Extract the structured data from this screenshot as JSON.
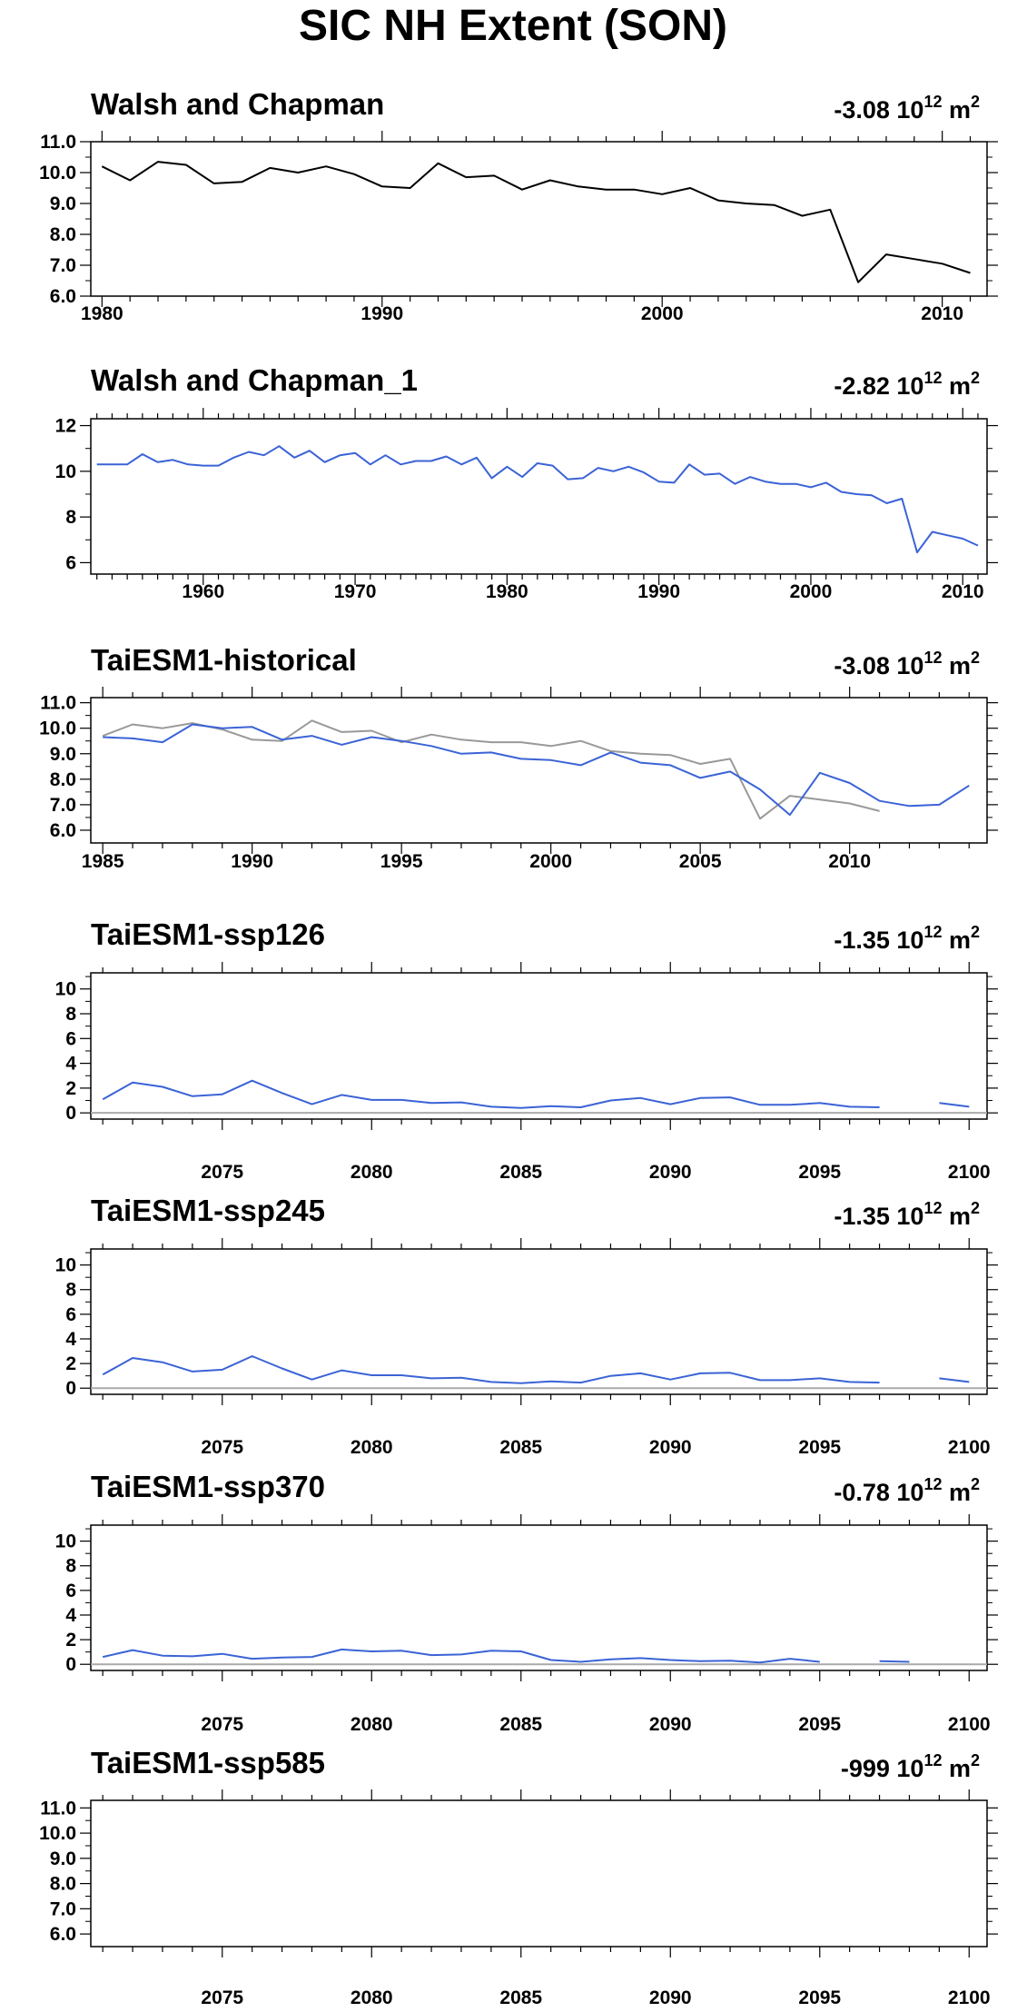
{
  "figure": {
    "title": "SIC NH Extent (SON)"
  },
  "colors": {
    "axis": "#000000",
    "obs_line": "#000000",
    "model_line": "#3b63d6",
    "obs_overlay": "#999999",
    "zero_line": "#aaaaaa"
  },
  "chart_data": [
    {
      "type": "line",
      "title": "Walsh and Chapman",
      "trend_value": "-3.08",
      "trend_unit": "10",
      "trend_exp": "12",
      "trend_suffix": "m",
      "trend_suffix_exp": "2",
      "xlim": [
        1979.6,
        2011.6
      ],
      "ylim": [
        6.0,
        11.0
      ],
      "xticks": [
        1980,
        1990,
        2000,
        2010
      ],
      "yticks": [
        6.0,
        7.0,
        8.0,
        9.0,
        10.0,
        11.0
      ],
      "ytick_labels": [
        "6.0",
        "7.0",
        "8.0",
        "9.0",
        "10.0",
        "11.0"
      ],
      "series": [
        {
          "color": "#000000",
          "x": [
            1980,
            1981,
            1982,
            1983,
            1984,
            1985,
            1986,
            1987,
            1988,
            1989,
            1990,
            1991,
            1992,
            1993,
            1994,
            1995,
            1996,
            1997,
            1998,
            1999,
            2000,
            2001,
            2002,
            2003,
            2004,
            2005,
            2006,
            2007,
            2008,
            2009,
            2010,
            2011
          ],
          "y": [
            10.2,
            9.75,
            10.35,
            10.25,
            9.65,
            9.7,
            10.15,
            10.0,
            10.2,
            9.95,
            9.55,
            9.5,
            10.3,
            9.85,
            9.9,
            9.45,
            9.75,
            9.55,
            9.45,
            9.45,
            9.3,
            9.5,
            9.1,
            9.0,
            8.95,
            8.6,
            8.8,
            6.45,
            7.35,
            7.2,
            7.05,
            6.75
          ]
        }
      ]
    },
    {
      "type": "line",
      "title": "Walsh and Chapman_1",
      "trend_value": "-2.82",
      "trend_unit": "10",
      "trend_exp": "12",
      "trend_suffix": "m",
      "trend_suffix_exp": "2",
      "xlim": [
        1952.6,
        2011.6
      ],
      "ylim": [
        5.5,
        12.3
      ],
      "xticks": [
        1960,
        1970,
        1980,
        1990,
        2000,
        2010
      ],
      "yticks": [
        6,
        8,
        10,
        12
      ],
      "ytick_labels": [
        "6",
        "8",
        "10",
        "12"
      ],
      "series": [
        {
          "color": "#3b63d6",
          "x": [
            1953,
            1954,
            1955,
            1956,
            1957,
            1958,
            1959,
            1960,
            1961,
            1962,
            1963,
            1964,
            1965,
            1966,
            1967,
            1968,
            1969,
            1970,
            1971,
            1972,
            1973,
            1974,
            1975,
            1976,
            1977,
            1978,
            1979,
            1980,
            1981,
            1982,
            1983,
            1984,
            1985,
            1986,
            1987,
            1988,
            1989,
            1990,
            1991,
            1992,
            1993,
            1994,
            1995,
            1996,
            1997,
            1998,
            1999,
            2000,
            2001,
            2002,
            2003,
            2004,
            2005,
            2006,
            2007,
            2008,
            2009,
            2010,
            2011
          ],
          "y": [
            10.3,
            10.3,
            10.3,
            10.75,
            10.4,
            10.5,
            10.3,
            10.25,
            10.25,
            10.6,
            10.85,
            10.7,
            11.1,
            10.6,
            10.9,
            10.4,
            10.7,
            10.8,
            10.3,
            10.7,
            10.3,
            10.45,
            10.45,
            10.65,
            10.3,
            10.6,
            9.7,
            10.2,
            9.75,
            10.35,
            10.25,
            9.65,
            9.7,
            10.15,
            10.0,
            10.2,
            9.95,
            9.55,
            9.5,
            10.3,
            9.85,
            9.9,
            9.45,
            9.75,
            9.55,
            9.45,
            9.45,
            9.3,
            9.5,
            9.1,
            9.0,
            8.95,
            8.6,
            8.8,
            6.45,
            7.35,
            7.2,
            7.05,
            6.75
          ]
        }
      ]
    },
    {
      "type": "line",
      "title": "TaiESM1-historical",
      "trend_value": "-3.08",
      "trend_unit": "10",
      "trend_exp": "12",
      "trend_suffix": "m",
      "trend_suffix_exp": "2",
      "xlim": [
        1984.6,
        2014.6
      ],
      "ylim": [
        5.5,
        11.2
      ],
      "xticks": [
        1985,
        1990,
        1995,
        2000,
        2005,
        2010
      ],
      "yticks": [
        6.0,
        7.0,
        8.0,
        9.0,
        10.0,
        11.0
      ],
      "ytick_labels": [
        "6.0",
        "7.0",
        "8.0",
        "9.0",
        "10.0",
        "11.0"
      ],
      "series": [
        {
          "color": "#999999",
          "x": [
            1985,
            1986,
            1987,
            1988,
            1989,
            1990,
            1991,
            1992,
            1993,
            1994,
            1995,
            1996,
            1997,
            1998,
            1999,
            2000,
            2001,
            2002,
            2003,
            2004,
            2005,
            2006,
            2007,
            2008,
            2009,
            2010,
            2011
          ],
          "y": [
            9.7,
            10.15,
            10.0,
            10.2,
            9.95,
            9.55,
            9.5,
            10.3,
            9.85,
            9.9,
            9.45,
            9.75,
            9.55,
            9.45,
            9.45,
            9.3,
            9.5,
            9.1,
            9.0,
            8.95,
            8.6,
            8.8,
            6.45,
            7.35,
            7.2,
            7.05,
            6.75
          ]
        },
        {
          "color": "#3b63d6",
          "x": [
            1985,
            1986,
            1987,
            1988,
            1989,
            1990,
            1991,
            1992,
            1993,
            1994,
            1995,
            1996,
            1997,
            1998,
            1999,
            2000,
            2001,
            2002,
            2003,
            2004,
            2005,
            2006,
            2007,
            2008,
            2009,
            2010,
            2011,
            2012,
            2013,
            2014
          ],
          "y": [
            9.65,
            9.6,
            9.45,
            10.15,
            10.0,
            10.05,
            9.55,
            9.7,
            9.35,
            9.65,
            9.5,
            9.3,
            9.0,
            9.05,
            8.8,
            8.75,
            8.55,
            9.05,
            8.65,
            8.55,
            8.05,
            8.3,
            7.6,
            6.6,
            8.25,
            7.85,
            7.15,
            6.95,
            7.0,
            7.75
          ]
        }
      ]
    },
    {
      "type": "line",
      "title": "TaiESM1-ssp126",
      "trend_value": "-1.35",
      "trend_unit": "10",
      "trend_exp": "12",
      "trend_suffix": "m",
      "trend_suffix_exp": "2",
      "xlim": [
        2070.6,
        2100.6
      ],
      "ylim": [
        -0.5,
        11.3
      ],
      "xticks": [
        2075,
        2080,
        2085,
        2090,
        2095,
        2100
      ],
      "yticks": [
        0,
        2,
        4,
        6,
        8,
        10
      ],
      "ytick_labels": [
        "0",
        "2",
        "4",
        "6",
        "8",
        "10"
      ],
      "zero_line": true,
      "series": [
        {
          "color": "#3b63d6",
          "x": [
            2071,
            2072,
            2073,
            2074,
            2075,
            2076,
            2077,
            2078,
            2079,
            2080,
            2081,
            2082,
            2083,
            2084,
            2085,
            2086,
            2087,
            2088,
            2089,
            2090,
            2091,
            2092,
            2093,
            2094,
            2095,
            2096,
            2097,
            2098,
            2099,
            2100
          ],
          "y": [
            1.1,
            2.45,
            2.1,
            1.35,
            1.5,
            2.6,
            1.6,
            0.7,
            1.45,
            1.05,
            1.05,
            0.8,
            0.85,
            0.5,
            0.4,
            0.55,
            0.45,
            1.0,
            1.2,
            0.7,
            1.2,
            1.25,
            0.65,
            0.65,
            0.8,
            0.5,
            0.45,
            null,
            0.8,
            0.5
          ]
        }
      ]
    },
    {
      "type": "line",
      "title": "TaiESM1-ssp245",
      "trend_value": "-1.35",
      "trend_unit": "10",
      "trend_exp": "12",
      "trend_suffix": "m",
      "trend_suffix_exp": "2",
      "xlim": [
        2070.6,
        2100.6
      ],
      "ylim": [
        -0.5,
        11.3
      ],
      "xticks": [
        2075,
        2080,
        2085,
        2090,
        2095,
        2100
      ],
      "yticks": [
        0,
        2,
        4,
        6,
        8,
        10
      ],
      "ytick_labels": [
        "0",
        "2",
        "4",
        "6",
        "8",
        "10"
      ],
      "zero_line": true,
      "series": [
        {
          "color": "#3b63d6",
          "x": [
            2071,
            2072,
            2073,
            2074,
            2075,
            2076,
            2077,
            2078,
            2079,
            2080,
            2081,
            2082,
            2083,
            2084,
            2085,
            2086,
            2087,
            2088,
            2089,
            2090,
            2091,
            2092,
            2093,
            2094,
            2095,
            2096,
            2097,
            2098,
            2099,
            2100
          ],
          "y": [
            1.1,
            2.45,
            2.1,
            1.35,
            1.5,
            2.6,
            1.6,
            0.7,
            1.45,
            1.05,
            1.05,
            0.8,
            0.85,
            0.5,
            0.4,
            0.55,
            0.45,
            1.0,
            1.2,
            0.7,
            1.2,
            1.25,
            0.65,
            0.65,
            0.8,
            0.5,
            0.45,
            null,
            0.8,
            0.5
          ]
        }
      ]
    },
    {
      "type": "line",
      "title": "TaiESM1-ssp370",
      "trend_value": "-0.78",
      "trend_unit": "10",
      "trend_exp": "12",
      "trend_suffix": "m",
      "trend_suffix_exp": "2",
      "xlim": [
        2070.6,
        2100.6
      ],
      "ylim": [
        -0.5,
        11.3
      ],
      "xticks": [
        2075,
        2080,
        2085,
        2090,
        2095,
        2100
      ],
      "yticks": [
        0,
        2,
        4,
        6,
        8,
        10
      ],
      "ytick_labels": [
        "0",
        "2",
        "4",
        "6",
        "8",
        "10"
      ],
      "zero_line": true,
      "series": [
        {
          "color": "#3b63d6",
          "x": [
            2071,
            2072,
            2073,
            2074,
            2075,
            2076,
            2077,
            2078,
            2079,
            2080,
            2081,
            2082,
            2083,
            2084,
            2085,
            2086,
            2087,
            2088,
            2089,
            2090,
            2091,
            2092,
            2093,
            2094,
            2095,
            2096,
            2097,
            2098
          ],
          "y": [
            0.6,
            1.15,
            0.7,
            0.65,
            0.85,
            0.45,
            0.55,
            0.6,
            1.2,
            1.05,
            1.1,
            0.75,
            0.8,
            1.1,
            1.05,
            0.35,
            0.2,
            0.4,
            0.5,
            0.35,
            0.25,
            0.3,
            0.15,
            0.45,
            0.2,
            null,
            0.25,
            0.2
          ]
        }
      ]
    },
    {
      "type": "line",
      "title": "TaiESM1-ssp585",
      "trend_value": "-999",
      "trend_unit": "10",
      "trend_exp": "12",
      "trend_suffix": "m",
      "trend_suffix_exp": "2",
      "xlim": [
        2070.6,
        2100.6
      ],
      "ylim": [
        5.5,
        11.3
      ],
      "xticks": [
        2075,
        2080,
        2085,
        2090,
        2095,
        2100
      ],
      "yticks": [
        6.0,
        7.0,
        8.0,
        9.0,
        10.0,
        11.0
      ],
      "ytick_labels": [
        "6.0",
        "7.0",
        "8.0",
        "9.0",
        "10.0",
        "11.0"
      ],
      "series": []
    }
  ]
}
